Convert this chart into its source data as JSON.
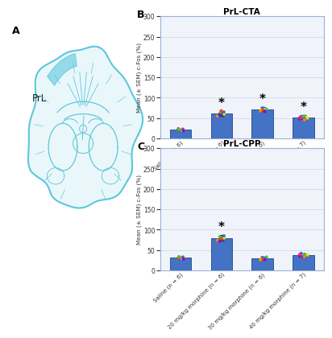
{
  "title_B": "PrL-CTA",
  "title_C": "PrL-CPP",
  "ylabel": "Mean (± SEM) c-Fos (%)",
  "categories": [
    "Saline (n = 6)",
    "20 mg/kg morphine (n = 6)",
    "30 mg/kg morphine (n = 6)",
    "40 mg/kg morphine (n = 7)"
  ],
  "bar_color": "#4472C4",
  "bar_edge_color": "#2F5496",
  "cta_values": [
    22,
    62,
    72,
    52
  ],
  "cta_errors": [
    2,
    6,
    5,
    5
  ],
  "cpp_values": [
    32,
    80,
    30,
    38
  ],
  "cpp_errors": [
    2.5,
    7,
    4,
    4
  ],
  "cta_significant": [
    false,
    true,
    true,
    true
  ],
  "cpp_significant": [
    false,
    true,
    false,
    false
  ],
  "cta_yticks": [
    0,
    50,
    100,
    150,
    200,
    250,
    300
  ],
  "cpp_yticks": [
    0,
    50,
    100,
    150,
    200,
    250,
    300
  ],
  "cta_ylim": [
    0,
    100
  ],
  "cpp_ylim": [
    0,
    110
  ],
  "background_color": "#FFFFFF",
  "panel_bg": "#F0F4FA",
  "panel_border": "#9BB0D4",
  "grid_color": "#C8D4E8",
  "brain_color": "#5BC8DC",
  "brain_fill_color": "#D6F0F7",
  "label_A": "A",
  "label_B": "B",
  "label_C": "C",
  "dot_colors": [
    "#FF8C00",
    "#FFD700",
    "#4169E1",
    "#FF4500",
    "#32CD32",
    "#9400D3",
    "#FF1493"
  ],
  "cta_dot_vals": [
    [
      20,
      21,
      23,
      24,
      22,
      19
    ],
    [
      55,
      60,
      65,
      68,
      62,
      58
    ],
    [
      68,
      73,
      75,
      70,
      72,
      66
    ],
    [
      46,
      50,
      54,
      52,
      55,
      48,
      51
    ]
  ],
  "cpp_dot_vals": [
    [
      30,
      32,
      33,
      31,
      34,
      28
    ],
    [
      74,
      80,
      85,
      78,
      83,
      72
    ],
    [
      26,
      30,
      32,
      28,
      33,
      27
    ],
    [
      34,
      38,
      42,
      36,
      40,
      35,
      39
    ]
  ]
}
